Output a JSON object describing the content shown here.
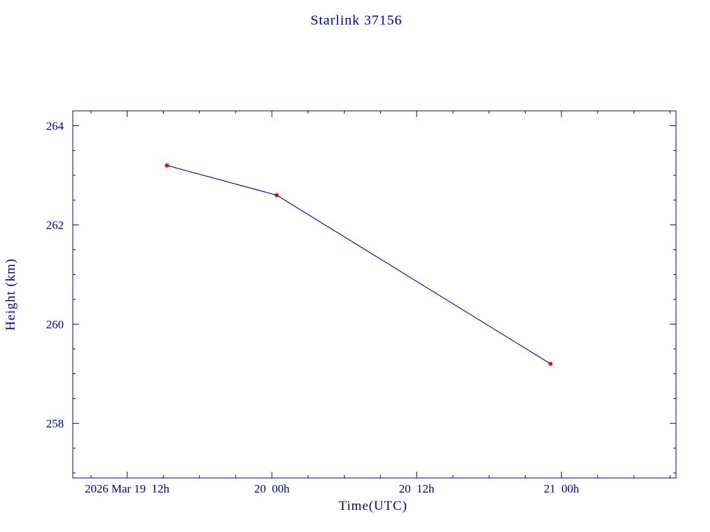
{
  "page": {
    "background": "#ffffff"
  },
  "colors": {
    "text": "#00008b",
    "axis": "#00008b",
    "line": "#00008b",
    "marker": "#cc0000"
  },
  "chart_data": {
    "type": "line",
    "title": "Starlink 37156",
    "xlabel": "Time(UTC)",
    "ylabel": "Height (km)",
    "x_axis": {
      "unit": "hours since 2026 Mar 19 00h UTC",
      "lim": [
        7.5,
        57.5
      ],
      "major_ticks": [
        {
          "hours": 12,
          "label": "2026 Mar 19  12h"
        },
        {
          "hours": 24,
          "label": "20  00h"
        },
        {
          "hours": 36,
          "label": "20  12h"
        },
        {
          "hours": 48,
          "label": "21  00h"
        }
      ],
      "minor_tick_step": 3
    },
    "y_axis": {
      "lim": [
        256.9,
        264.3
      ],
      "major_ticks": [
        258,
        260,
        262,
        264
      ],
      "minor_tick_step": 0.5
    },
    "series": [
      {
        "name": "height",
        "x_hours": [
          15.3,
          24.4,
          47.1
        ],
        "heights_km": [
          263.2,
          262.6,
          259.2
        ],
        "line_color": "#00008b",
        "marker": "asterisk",
        "marker_color": "#cc0000"
      }
    ],
    "grid": false,
    "legend": false
  }
}
